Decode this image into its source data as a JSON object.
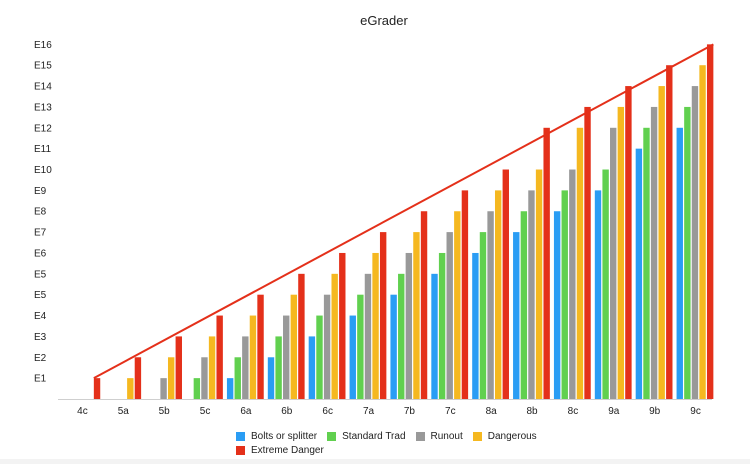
{
  "chart_data": {
    "type": "bar",
    "title": "eGrader",
    "xlabel": "",
    "ylabel": "",
    "categories": [
      "4c",
      "5a",
      "5b",
      "5c",
      "6a",
      "6b",
      "6c",
      "7a",
      "7b",
      "7c",
      "8a",
      "8b",
      "8c",
      "9a",
      "9b",
      "9c"
    ],
    "y_tick_labels": [
      "E1",
      "E2",
      "E3",
      "E4",
      "E5",
      "E5",
      "E6",
      "E7",
      "E8",
      "E9",
      "E10",
      "E11",
      "E12",
      "E13",
      "E14",
      "E15",
      "E16"
    ],
    "ylim": [
      0,
      17.4
    ],
    "grid": false,
    "legend_position": "bottom",
    "series": [
      {
        "name": "Bolts or splitter",
        "color": "#2a9df4",
        "values": [
          0,
          0,
          0,
          0,
          1,
          2,
          3,
          4,
          5,
          6,
          7,
          8,
          9,
          10,
          12,
          13
        ]
      },
      {
        "name": "Standard Trad",
        "color": "#61d04f",
        "values": [
          0,
          0,
          0,
          1,
          2,
          3,
          4,
          5,
          6,
          7,
          8,
          9,
          10,
          11,
          13,
          14
        ]
      },
      {
        "name": "Runout",
        "color": "#999999",
        "values": [
          0,
          0,
          1,
          2,
          3,
          4,
          5,
          6,
          7,
          8,
          9,
          10,
          11,
          13,
          14,
          15
        ]
      },
      {
        "name": "Dangerous",
        "color": "#f5b820",
        "values": [
          0,
          1,
          2,
          3,
          4,
          5,
          6,
          7,
          8,
          9,
          10,
          11,
          13,
          14,
          15,
          16
        ]
      },
      {
        "name": "Extreme Danger",
        "color": "#e4301a",
        "values": [
          1,
          2,
          3,
          4,
          5,
          6,
          7,
          8,
          9,
          10,
          11,
          13,
          14,
          15,
          16,
          17
        ]
      }
    ],
    "trend_line": {
      "color": "#e4301a"
    }
  }
}
